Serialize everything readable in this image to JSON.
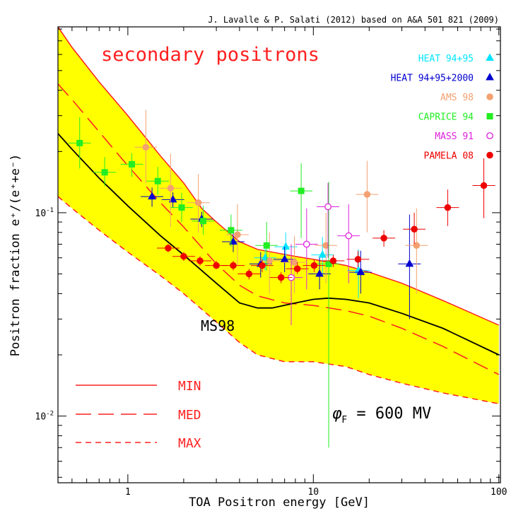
{
  "chart_data": {
    "type": "scatter",
    "credit": "J. Lavalle & P. Salati (2012) based on A&A 501 821 (2009)",
    "title": "secondary positrons",
    "xlabel": "TOA Positron energy  [GeV]",
    "ylabel": "Positron fraction e⁺/(e⁺+e⁻)",
    "x_scale": "log",
    "y_scale": "log",
    "xlim": [
      0.42,
      102
    ],
    "ylim": [
      0.0047,
      0.82
    ],
    "x_ticks": [
      {
        "value": 1,
        "label": "1"
      },
      {
        "value": 10,
        "label": "10"
      },
      {
        "value": 100,
        "label": "100"
      }
    ],
    "y_ticks": [
      {
        "value": 0.01,
        "base": "10",
        "exp": "-2"
      },
      {
        "value": 0.1,
        "base": "10",
        "exp": "-1"
      }
    ],
    "band_label": "MS98",
    "phi_label": {
      "symbol": "φ",
      "sub": "F",
      "text": " = 600 MV"
    },
    "model_legend": [
      {
        "name": "MIN",
        "style": "solid"
      },
      {
        "name": "MED",
        "style": "long-dash"
      },
      {
        "name": "MAX",
        "style": "short-dash"
      }
    ],
    "colors": {
      "band": "#ffff00",
      "model": "#ff2020",
      "ms98": "#000000"
    },
    "model_curves": {
      "min": [
        [
          0.42,
          0.82
        ],
        [
          0.5,
          0.65
        ],
        [
          0.7,
          0.44
        ],
        [
          1,
          0.3
        ],
        [
          1.5,
          0.19
        ],
        [
          2,
          0.14
        ],
        [
          2.5,
          0.105
        ],
        [
          3,
          0.09
        ],
        [
          4,
          0.072
        ],
        [
          5,
          0.066
        ],
        [
          6,
          0.064
        ],
        [
          8,
          0.061
        ],
        [
          10,
          0.059
        ],
        [
          15,
          0.055
        ],
        [
          20,
          0.051
        ],
        [
          30,
          0.045
        ],
        [
          50,
          0.037
        ],
        [
          100,
          0.028
        ]
      ],
      "med": [
        [
          0.42,
          0.43
        ],
        [
          0.5,
          0.36
        ],
        [
          0.7,
          0.25
        ],
        [
          1,
          0.17
        ],
        [
          1.5,
          0.112
        ],
        [
          2,
          0.085
        ],
        [
          3,
          0.056
        ],
        [
          4,
          0.044
        ],
        [
          5,
          0.039
        ],
        [
          7,
          0.036
        ],
        [
          10,
          0.035
        ],
        [
          15,
          0.033
        ],
        [
          20,
          0.031
        ],
        [
          30,
          0.027
        ],
        [
          50,
          0.022
        ],
        [
          100,
          0.016
        ]
      ],
      "max": [
        [
          0.42,
          0.12
        ],
        [
          0.5,
          0.105
        ],
        [
          0.7,
          0.082
        ],
        [
          1,
          0.064
        ],
        [
          1.5,
          0.049
        ],
        [
          2,
          0.04
        ],
        [
          3,
          0.029
        ],
        [
          4,
          0.023
        ],
        [
          5,
          0.02
        ],
        [
          7,
          0.0185
        ],
        [
          10,
          0.0185
        ],
        [
          15,
          0.0175
        ],
        [
          20,
          0.016
        ],
        [
          30,
          0.0145
        ],
        [
          50,
          0.013
        ],
        [
          100,
          0.0115
        ]
      ],
      "ms98": [
        [
          0.42,
          0.245
        ],
        [
          0.5,
          0.205
        ],
        [
          0.7,
          0.148
        ],
        [
          1,
          0.108
        ],
        [
          1.5,
          0.077
        ],
        [
          2,
          0.062
        ],
        [
          3,
          0.045
        ],
        [
          4,
          0.036
        ],
        [
          5,
          0.034
        ],
        [
          6,
          0.034
        ],
        [
          8,
          0.036
        ],
        [
          10,
          0.0375
        ],
        [
          12,
          0.038
        ],
        [
          15,
          0.0375
        ],
        [
          20,
          0.036
        ],
        [
          30,
          0.032
        ],
        [
          50,
          0.027
        ],
        [
          100,
          0.02
        ]
      ]
    },
    "series": [
      {
        "name": "HEAT 94+95",
        "color": "#00e5ff",
        "marker": "triangle",
        "filled": true,
        "points": [
          [
            5.5,
            0.06,
            0.052,
            0.069
          ],
          [
            7.1,
            0.068,
            0.057,
            0.08
          ],
          [
            11.2,
            0.062,
            0.05,
            0.076
          ],
          [
            17.5,
            0.052,
            0.038,
            0.066
          ]
        ]
      },
      {
        "name": "HEAT 94+95+2000",
        "color": "#0000d0",
        "marker": "triangle",
        "filled": true,
        "points": [
          [
            1.35,
            0.12,
            0.107,
            0.133
          ],
          [
            1.75,
            0.116,
            0.106,
            0.126
          ],
          [
            2.5,
            0.093,
            0.085,
            0.101
          ],
          [
            3.7,
            0.072,
            0.064,
            0.08
          ],
          [
            5.2,
            0.056,
            0.048,
            0.064
          ],
          [
            7.0,
            0.059,
            0.051,
            0.068
          ],
          [
            10.8,
            0.05,
            0.042,
            0.06
          ],
          [
            18.0,
            0.051,
            0.04,
            0.065
          ],
          [
            33.0,
            0.056,
            0.03,
            0.098
          ]
        ]
      },
      {
        "name": "AMS 98",
        "color": "#f4a070",
        "marker": "circle",
        "filled": true,
        "points": [
          [
            1.25,
            0.21,
            0.14,
            0.32
          ],
          [
            1.7,
            0.132,
            0.085,
            0.195
          ],
          [
            2.4,
            0.112,
            0.08,
            0.155
          ],
          [
            3.9,
            0.078,
            0.055,
            0.11
          ],
          [
            5.8,
            0.058,
            0.04,
            0.08
          ],
          [
            7.9,
            0.057,
            0.04,
            0.077
          ],
          [
            11.7,
            0.069,
            0.045,
            0.1
          ],
          [
            19.5,
            0.123,
            0.08,
            0.18
          ],
          [
            36.0,
            0.069,
            0.04,
            0.105
          ]
        ]
      },
      {
        "name": "CAPRICE 94",
        "color": "#22ee22",
        "marker": "square",
        "filled": true,
        "points": [
          [
            0.55,
            0.22,
            0.165,
            0.295
          ],
          [
            0.75,
            0.158,
            0.135,
            0.188
          ],
          [
            1.05,
            0.173,
            0.15,
            0.196
          ],
          [
            1.45,
            0.143,
            0.123,
            0.168
          ],
          [
            1.95,
            0.106,
            0.09,
            0.125
          ],
          [
            2.55,
            0.091,
            0.078,
            0.108
          ],
          [
            3.6,
            0.082,
            0.068,
            0.098
          ],
          [
            5.6,
            0.069,
            0.052,
            0.09
          ],
          [
            8.6,
            0.128,
            0.075,
            0.175
          ],
          [
            12.1,
            0.056,
            0.007,
            0.142
          ]
        ]
      },
      {
        "name": "MASS 91",
        "color": "#dd22dd",
        "marker": "circle",
        "filled": false,
        "points": [
          [
            7.6,
            0.048,
            0.028,
            0.07
          ],
          [
            9.2,
            0.07,
            0.042,
            0.105
          ],
          [
            12.0,
            0.107,
            0.06,
            0.14
          ],
          [
            15.5,
            0.077,
            0.045,
            0.11
          ]
        ]
      },
      {
        "name": "PAMELA 08",
        "color": "#ee0000",
        "marker": "circle",
        "filled": true,
        "points": [
          [
            1.65,
            0.067,
            0.064,
            0.07
          ],
          [
            2.0,
            0.061,
            0.058,
            0.064
          ],
          [
            2.45,
            0.058,
            0.055,
            0.061
          ],
          [
            3.0,
            0.055,
            0.053,
            0.058
          ],
          [
            3.7,
            0.055,
            0.052,
            0.058
          ],
          [
            4.5,
            0.05,
            0.047,
            0.053
          ],
          [
            5.3,
            0.055,
            0.051,
            0.059
          ],
          [
            6.7,
            0.048,
            0.045,
            0.051
          ],
          [
            8.2,
            0.053,
            0.05,
            0.057
          ],
          [
            10.1,
            0.055,
            0.051,
            0.059
          ],
          [
            12.8,
            0.058,
            0.054,
            0.062
          ],
          [
            17.4,
            0.059,
            0.054,
            0.065
          ],
          [
            24.0,
            0.075,
            0.068,
            0.082
          ],
          [
            35.0,
            0.083,
            0.07,
            0.1
          ],
          [
            53.0,
            0.106,
            0.086,
            0.13
          ],
          [
            83.0,
            0.136,
            0.094,
            0.185
          ]
        ]
      }
    ]
  }
}
